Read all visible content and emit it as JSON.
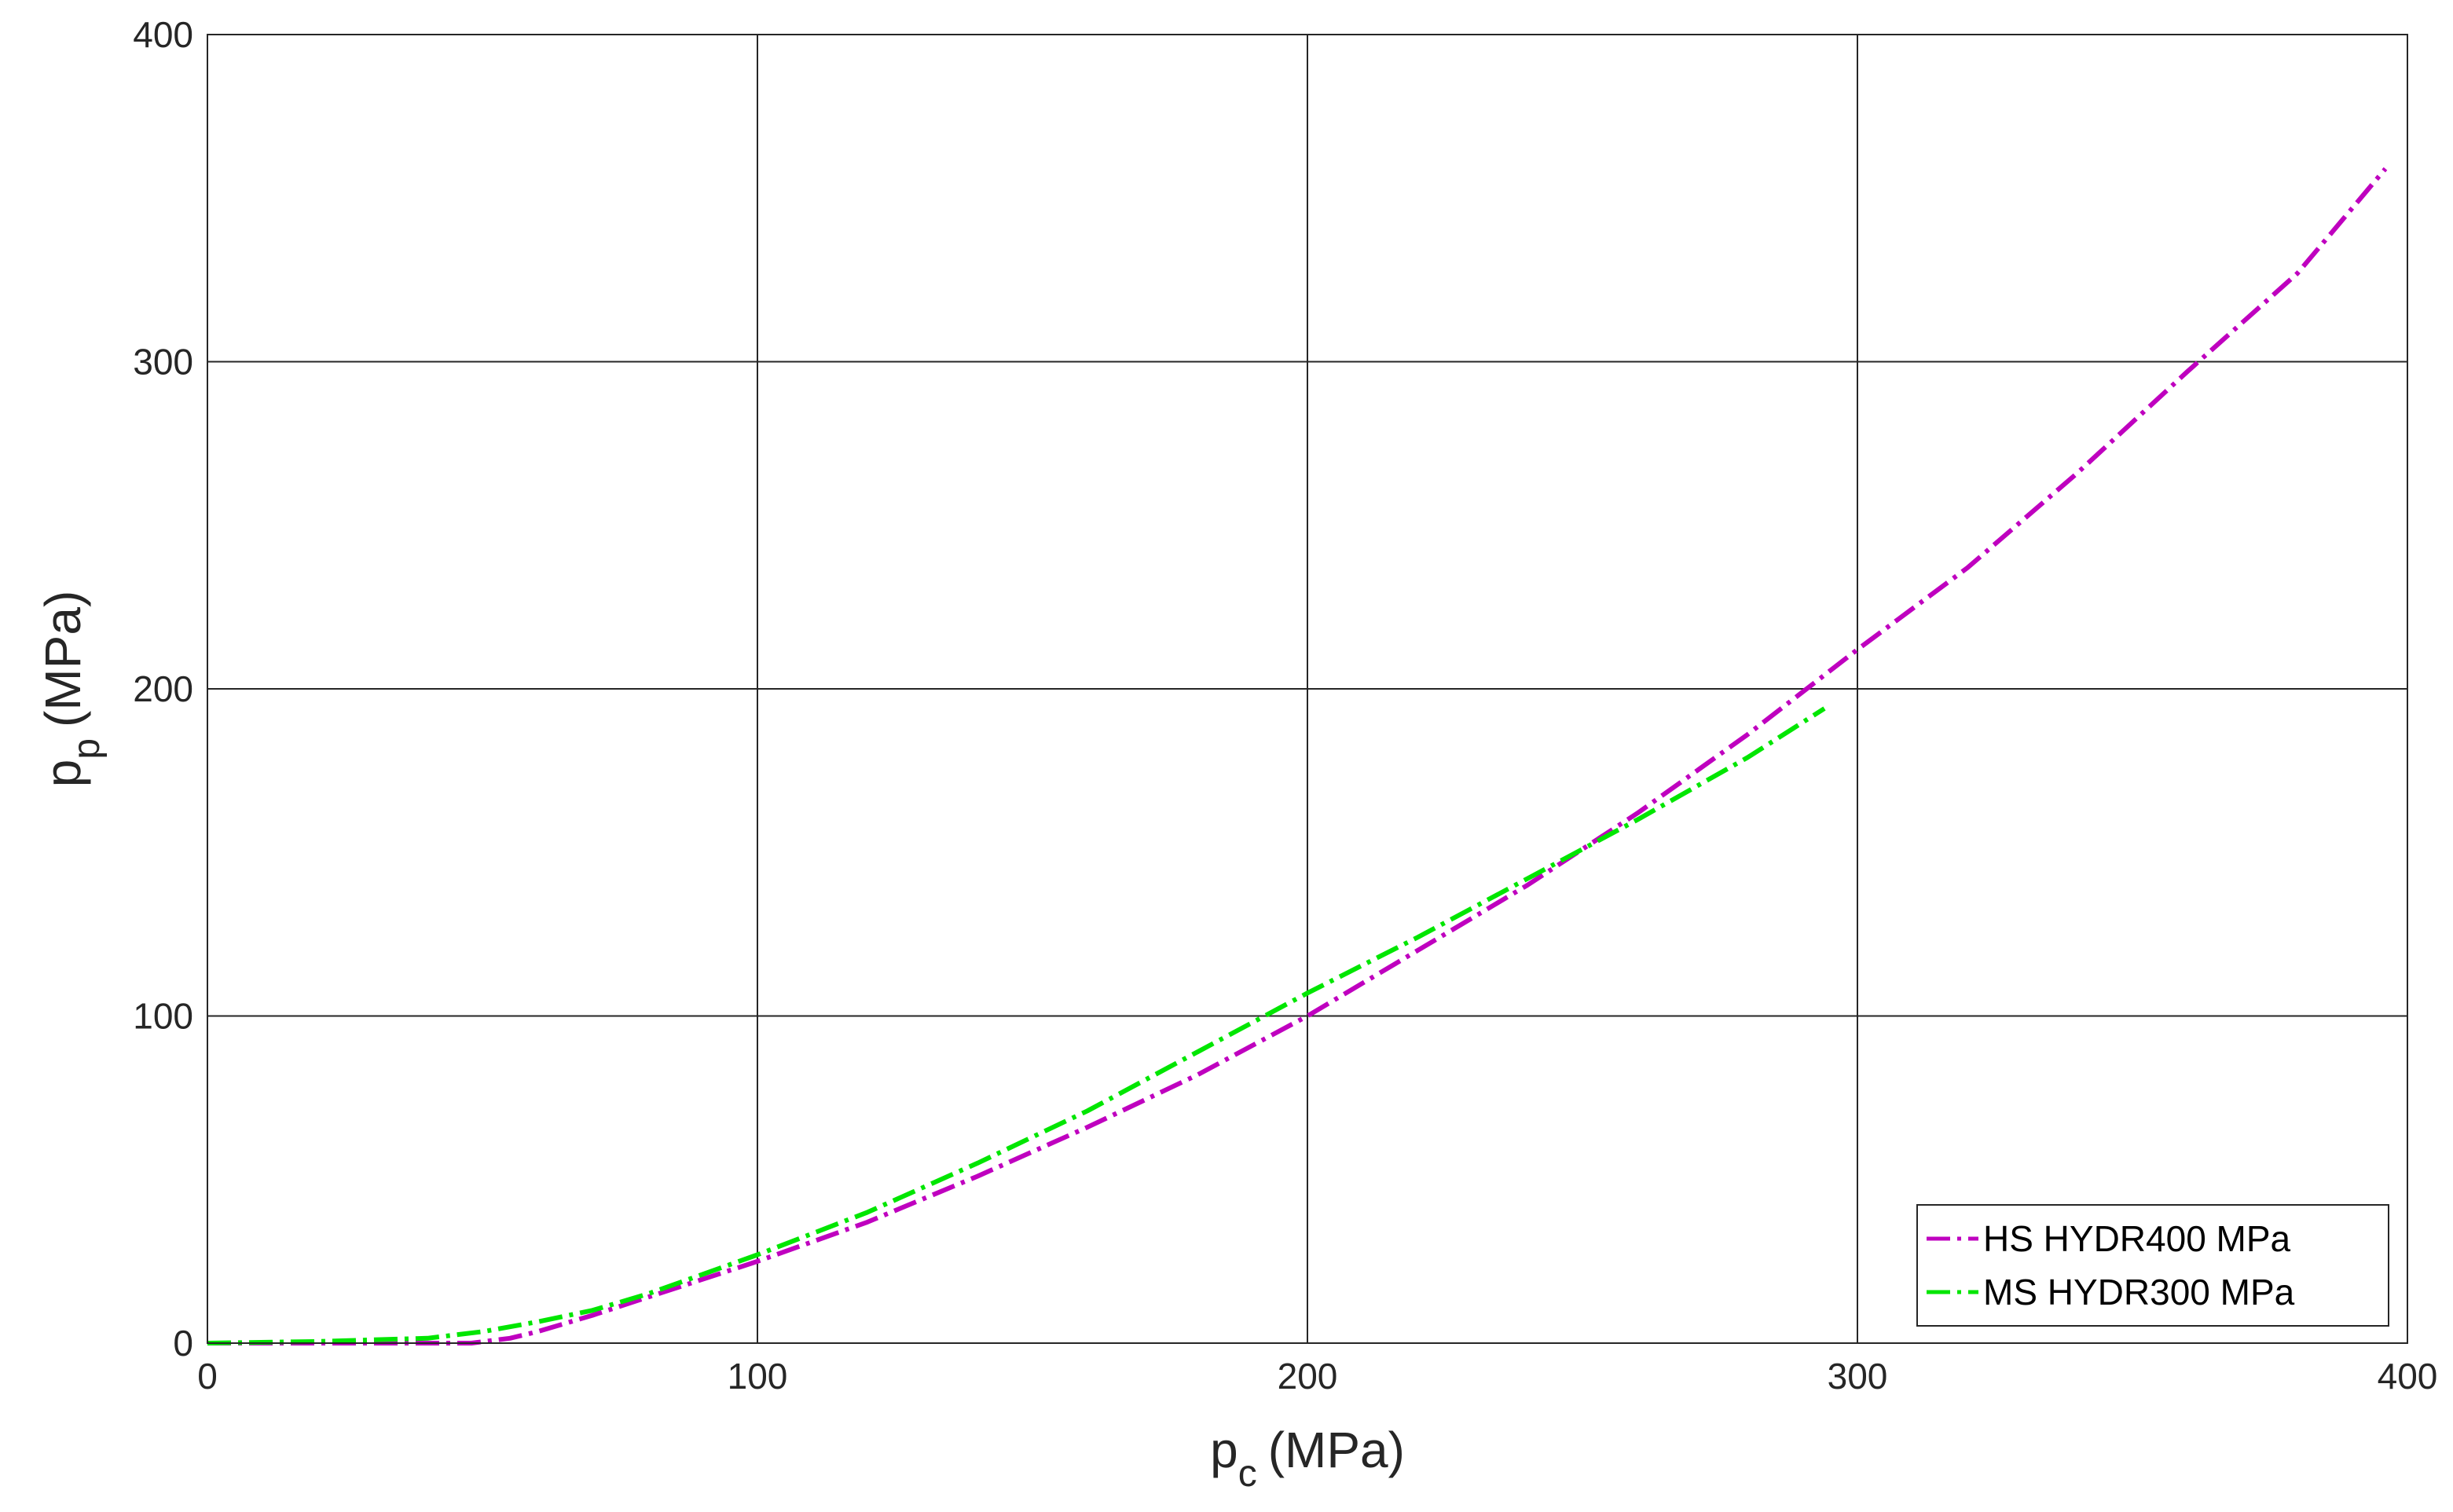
{
  "chart_data": {
    "type": "line",
    "xlabel": {
      "main": "p",
      "sub": "c",
      "unit": "(MPa)"
    },
    "ylabel": {
      "main": "p",
      "sub": "p",
      "unit": "(MPa)"
    },
    "xlim": [
      0,
      400
    ],
    "ylim": [
      0,
      400
    ],
    "xticks": [
      0,
      100,
      200,
      300,
      400
    ],
    "yticks": [
      0,
      100,
      200,
      300,
      400
    ],
    "grid": true,
    "legend_position": "bottom-right",
    "series": [
      {
        "name": "HS HYDR400 MPa",
        "color": "#BF00BF",
        "x": [
          0,
          20,
          40,
          48,
          55,
          60,
          70,
          80,
          100,
          120,
          140,
          160,
          180,
          200,
          220,
          240,
          260,
          280,
          300,
          320,
          340,
          360,
          380,
          396
        ],
        "y": [
          0,
          0,
          0,
          0,
          1.5,
          3.5,
          8.5,
          14,
          25,
          37,
          51,
          66,
          82,
          100,
          120,
          140,
          162,
          186,
          212,
          237,
          266,
          297,
          327,
          359
        ]
      },
      {
        "name": "MS HYDR300 MPa",
        "color": "#00E600",
        "x": [
          0,
          20,
          40,
          50,
          60,
          70,
          80,
          100,
          120,
          140,
          160,
          180,
          200,
          220,
          240,
          260,
          280,
          294
        ],
        "y": [
          0,
          0.5,
          1.5,
          3.5,
          6.5,
          10,
          15,
          27,
          40,
          55,
          71,
          89,
          107,
          124,
          142,
          160,
          179,
          194
        ]
      }
    ]
  }
}
